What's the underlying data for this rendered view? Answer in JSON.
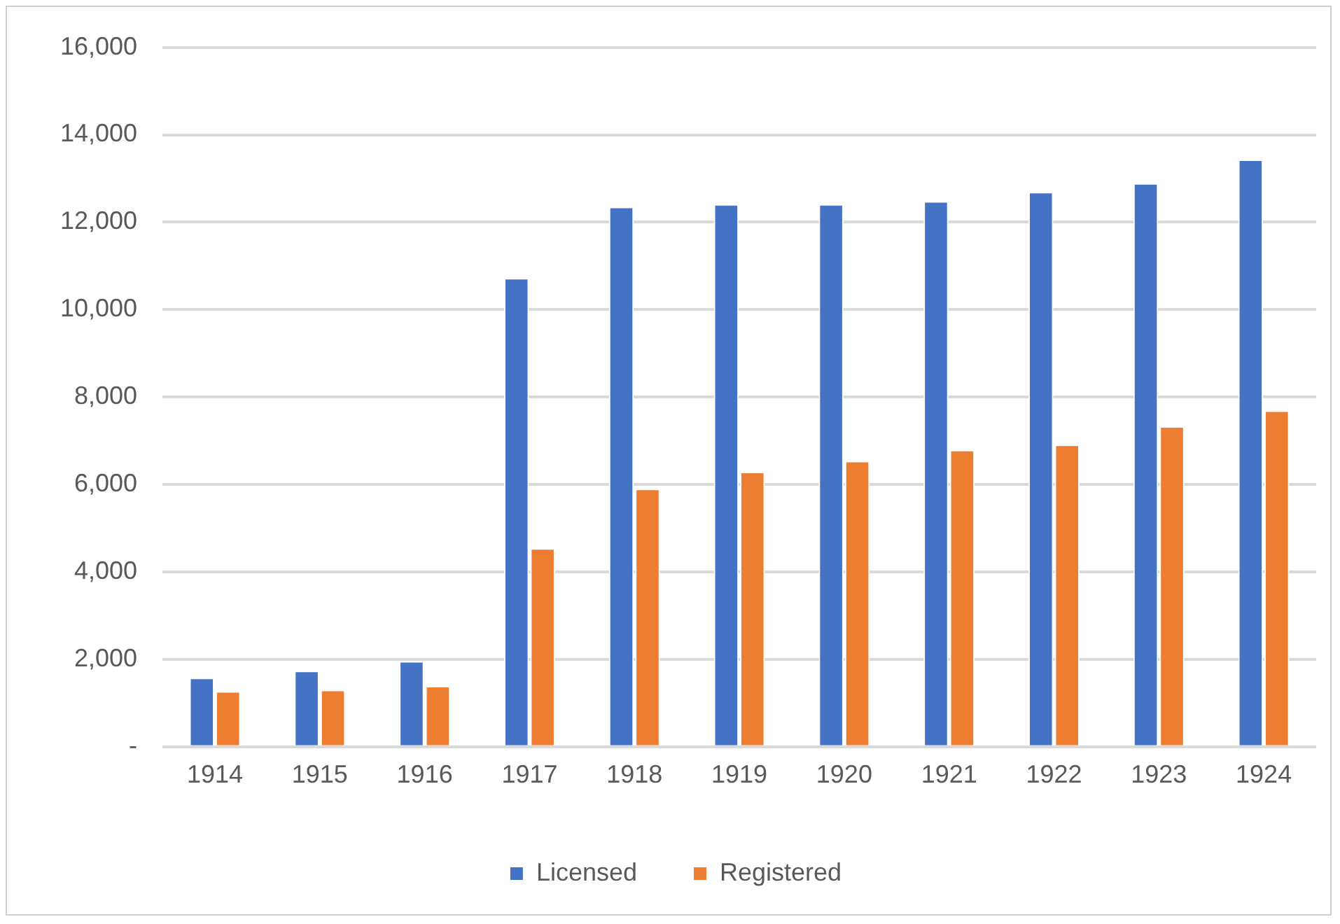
{
  "chart_data": {
    "type": "bar",
    "categories": [
      "1914",
      "1915",
      "1916",
      "1917",
      "1918",
      "1919",
      "1920",
      "1921",
      "1922",
      "1923",
      "1924"
    ],
    "series": [
      {
        "name": "Licensed",
        "color": "#4472c4",
        "values": [
          1580,
          1740,
          1960,
          10720,
          12350,
          12410,
          12410,
          12480,
          12690,
          12890,
          13430
        ]
      },
      {
        "name": "Registered",
        "color": "#ed7d31",
        "values": [
          1270,
          1300,
          1390,
          4540,
          5900,
          6290,
          6540,
          6790,
          6910,
          7330,
          7690
        ]
      }
    ],
    "ylim": [
      0,
      16000
    ],
    "yticks": [
      {
        "value": 0,
        "label": "-"
      },
      {
        "value": 2000,
        "label": "2,000"
      },
      {
        "value": 4000,
        "label": "4,000"
      },
      {
        "value": 6000,
        "label": "6,000"
      },
      {
        "value": 8000,
        "label": "8,000"
      },
      {
        "value": 10000,
        "label": "10,000"
      },
      {
        "value": 12000,
        "label": "12,000"
      },
      {
        "value": 14000,
        "label": "14,000"
      },
      {
        "value": 16000,
        "label": "16,000"
      }
    ],
    "grid": "y",
    "legend": "bottom"
  }
}
